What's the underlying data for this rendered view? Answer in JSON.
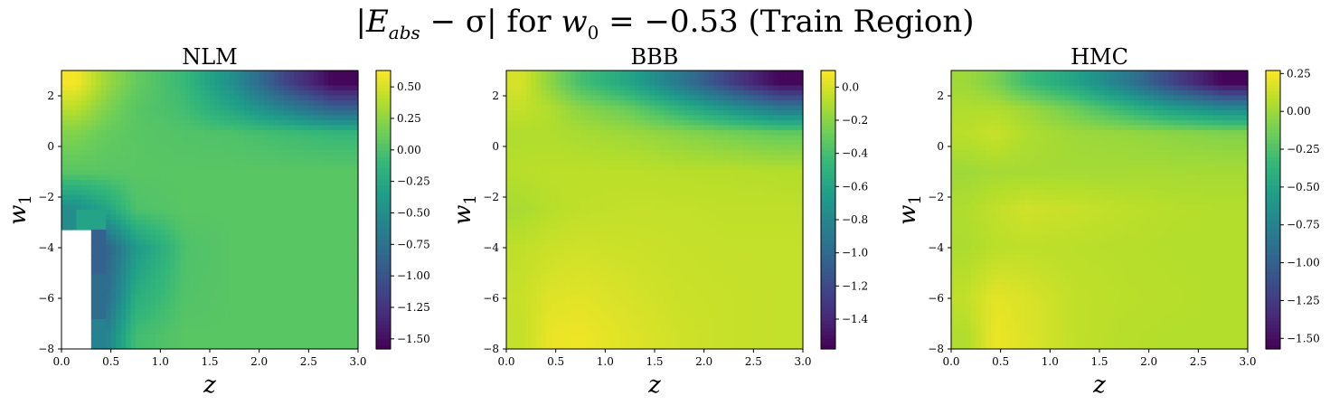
{
  "figure": {
    "title_parts": {
      "bar_open": "|",
      "E": "E",
      "sub_abs": "abs",
      "minus_sigma": " − σ| for ",
      "w": "w",
      "sub_0": "0",
      "equals_value": " = −0.53 ",
      "region": "(Train Region)"
    }
  },
  "colors": {
    "viridis": [
      "#440154",
      "#482878",
      "#3e4989",
      "#31688e",
      "#26828e",
      "#1f9e89",
      "#35b779",
      "#6ece58",
      "#b5de2b",
      "#fde725"
    ]
  },
  "chart_data": [
    {
      "type": "heatmap",
      "title": "NLM",
      "xlabel": "z",
      "ylabel": "w",
      "ylabel_sub": "1",
      "xlim": [
        0.0,
        3.0
      ],
      "ylim": [
        -8,
        3
      ],
      "x_ticks": [
        "0.0",
        "0.5",
        "1.0",
        "1.5",
        "2.0",
        "2.5",
        "3.0"
      ],
      "y_ticks": [
        "2",
        "0",
        "−2",
        "−4",
        "−6",
        "−8"
      ],
      "colorbar_range": [
        -1.58,
        0.63
      ],
      "colorbar_ticks": [
        "0.50",
        "0.25",
        "0.00",
        "−0.25",
        "−0.50",
        "−0.75",
        "−1.00",
        "−1.25",
        "−1.50"
      ],
      "colorbar_tick_values": [
        0.5,
        0.25,
        0.0,
        -0.25,
        -0.5,
        -0.75,
        -1.0,
        -1.25,
        -1.5
      ],
      "missing_region": "white area in lower-left (z < ~0.37, w1 < ~-2.5)",
      "grid_z": [
        0.15,
        0.45,
        0.75,
        1.25,
        1.75,
        2.25,
        2.75
      ],
      "grid_w1": [
        2.5,
        1.5,
        0.5,
        -1.0,
        -2.5,
        -4.0,
        -6.0,
        -7.5
      ],
      "values": [
        [
          0.6,
          0.3,
          0.1,
          -0.1,
          -0.5,
          -1.1,
          -1.55
        ],
        [
          0.4,
          0.2,
          0.05,
          -0.05,
          -0.3,
          -0.6,
          -0.9
        ],
        [
          0.2,
          0.1,
          0.05,
          0.02,
          0.0,
          -0.05,
          -0.1
        ],
        [
          0.05,
          0.05,
          0.05,
          0.05,
          0.05,
          0.05,
          0.05
        ],
        [
          -0.5,
          -0.3,
          0.0,
          0.05,
          0.05,
          0.05,
          0.05
        ],
        [
          null,
          -0.9,
          -0.4,
          0.0,
          0.05,
          0.05,
          0.05
        ],
        [
          null,
          -0.8,
          -0.2,
          0.02,
          0.05,
          0.05,
          0.05
        ],
        [
          null,
          -0.6,
          -0.05,
          0.05,
          0.05,
          0.05,
          0.05
        ]
      ]
    },
    {
      "type": "heatmap",
      "title": "BBB",
      "xlabel": "z",
      "ylabel": "w",
      "ylabel_sub": "1",
      "xlim": [
        0.0,
        3.0
      ],
      "ylim": [
        -8,
        3
      ],
      "x_ticks": [
        "0.0",
        "0.5",
        "1.0",
        "1.5",
        "2.0",
        "2.5",
        "3.0"
      ],
      "y_ticks": [
        "2",
        "0",
        "−2",
        "−4",
        "−6",
        "−8"
      ],
      "colorbar_range": [
        -1.58,
        0.1
      ],
      "colorbar_ticks": [
        "0.0",
        "−0.2",
        "−0.4",
        "−0.6",
        "−0.8",
        "−1.0",
        "−1.2",
        "−1.4"
      ],
      "colorbar_tick_values": [
        0.0,
        -0.2,
        -0.4,
        -0.6,
        -0.8,
        -1.0,
        -1.2,
        -1.4
      ],
      "grid_z": [
        0.15,
        0.45,
        0.75,
        1.25,
        1.75,
        2.25,
        2.75
      ],
      "grid_w1": [
        2.5,
        1.5,
        0.5,
        -1.0,
        -2.5,
        -4.0,
        -6.0,
        -7.5
      ],
      "values": [
        [
          0.0,
          -0.2,
          -0.4,
          -0.6,
          -0.9,
          -1.25,
          -1.55
        ],
        [
          -0.05,
          -0.1,
          -0.2,
          -0.3,
          -0.5,
          -0.7,
          -0.9
        ],
        [
          -0.1,
          -0.1,
          -0.12,
          -0.15,
          -0.2,
          -0.25,
          -0.3
        ],
        [
          -0.08,
          -0.07,
          -0.07,
          -0.07,
          -0.08,
          -0.08,
          -0.09
        ],
        [
          -0.12,
          -0.08,
          -0.06,
          -0.05,
          -0.05,
          -0.06,
          -0.06
        ],
        [
          -0.06,
          -0.03,
          -0.02,
          -0.03,
          -0.04,
          -0.05,
          -0.05
        ],
        [
          -0.04,
          0.02,
          0.03,
          0.0,
          -0.03,
          -0.04,
          -0.05
        ],
        [
          -0.05,
          0.05,
          0.06,
          0.02,
          -0.02,
          -0.04,
          -0.05
        ]
      ]
    },
    {
      "type": "heatmap",
      "title": "HMC",
      "xlabel": "z",
      "ylabel": "w",
      "ylabel_sub": "1",
      "xlim": [
        0.0,
        3.0
      ],
      "ylim": [
        -8,
        3
      ],
      "x_ticks": [
        "0.0",
        "0.5",
        "1.0",
        "1.5",
        "2.0",
        "2.5",
        "3.0"
      ],
      "y_ticks": [
        "2",
        "0",
        "−2",
        "−4",
        "−6",
        "−8"
      ],
      "colorbar_range": [
        -1.57,
        0.27
      ],
      "colorbar_ticks": [
        "0.25",
        "0.00",
        "−0.25",
        "−0.50",
        "−0.75",
        "−1.00",
        "−1.25",
        "−1.50"
      ],
      "colorbar_tick_values": [
        0.25,
        0.0,
        -0.25,
        -0.5,
        -0.75,
        -1.0,
        -1.25,
        -1.5
      ],
      "grid_z": [
        0.15,
        0.45,
        0.75,
        1.25,
        1.75,
        2.25,
        2.75
      ],
      "grid_w1": [
        2.5,
        1.5,
        0.5,
        -1.0,
        -2.5,
        -4.0,
        -6.0,
        -7.5
      ],
      "values": [
        [
          0.0,
          -0.1,
          -0.3,
          -0.5,
          -0.8,
          -1.2,
          -1.55
        ],
        [
          0.05,
          0.05,
          0.0,
          -0.15,
          -0.35,
          -0.55,
          -0.7
        ],
        [
          0.08,
          0.12,
          0.05,
          0.0,
          -0.02,
          -0.05,
          -0.08
        ],
        [
          0.0,
          0.02,
          0.02,
          0.02,
          0.02,
          0.02,
          0.02
        ],
        [
          0.05,
          0.1,
          0.14,
          0.12,
          0.09,
          0.07,
          0.06
        ],
        [
          0.04,
          0.08,
          0.09,
          0.08,
          0.07,
          0.06,
          0.06
        ],
        [
          0.1,
          0.2,
          0.17,
          0.1,
          0.08,
          0.07,
          0.06
        ],
        [
          0.05,
          0.22,
          0.18,
          0.1,
          0.07,
          0.06,
          0.06
        ]
      ]
    }
  ]
}
